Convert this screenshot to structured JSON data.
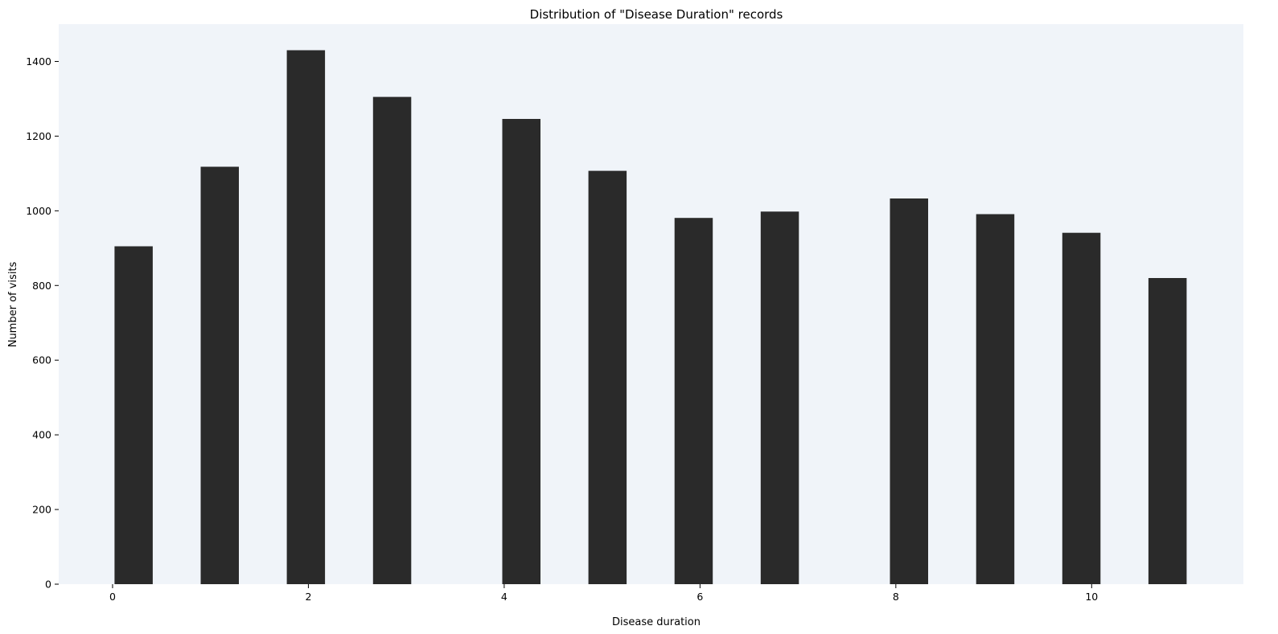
{
  "chart_data": {
    "type": "bar",
    "title": "Distribution of \"Disease Duration\" records",
    "xlabel": "Disease duration",
    "ylabel": "Number of visits",
    "xlim": [
      -0.55,
      11.55
    ],
    "ylim": [
      0,
      1500
    ],
    "x_ticks": [
      0,
      2,
      4,
      6,
      8,
      10
    ],
    "y_ticks": [
      0,
      200,
      400,
      600,
      800,
      1000,
      1200,
      1400
    ],
    "bars": [
      {
        "x_start": 0.02,
        "x_end": 0.41,
        "value": 905
      },
      {
        "x_start": 0.9,
        "x_end": 1.29,
        "value": 1118
      },
      {
        "x_start": 1.78,
        "x_end": 2.17,
        "value": 1430
      },
      {
        "x_start": 2.66,
        "x_end": 3.05,
        "value": 1305
      },
      {
        "x_start": 3.98,
        "x_end": 4.37,
        "value": 1246
      },
      {
        "x_start": 4.86,
        "x_end": 5.25,
        "value": 1107
      },
      {
        "x_start": 5.74,
        "x_end": 6.13,
        "value": 981
      },
      {
        "x_start": 6.62,
        "x_end": 7.01,
        "value": 998
      },
      {
        "x_start": 7.94,
        "x_end": 8.33,
        "value": 1033
      },
      {
        "x_start": 8.82,
        "x_end": 9.21,
        "value": 991
      },
      {
        "x_start": 9.7,
        "x_end": 10.09,
        "value": 941
      },
      {
        "x_start": 10.58,
        "x_end": 10.97,
        "value": 820
      }
    ],
    "grid": false,
    "colors": {
      "bar": "#2a2a2a",
      "plot_background": "#f0f4f9",
      "axis": "#000000"
    }
  }
}
